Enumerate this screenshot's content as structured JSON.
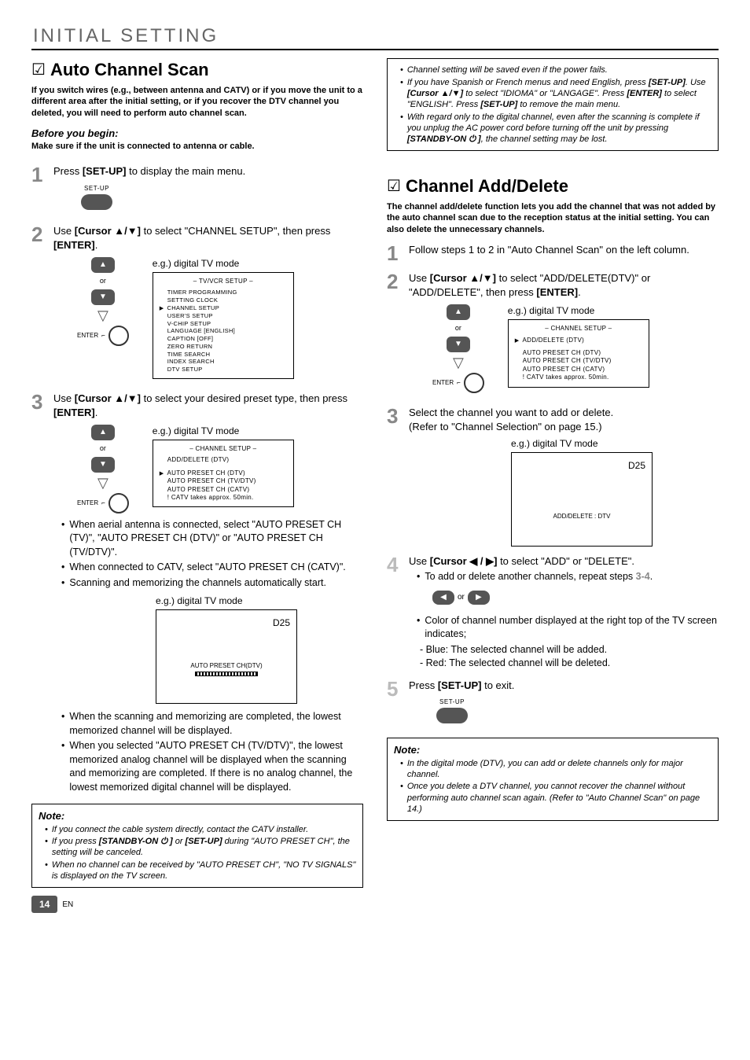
{
  "header": {
    "cap": "I",
    "rest": "NITIAL  SETTING"
  },
  "pageNum": "14",
  "pageLang": "EN",
  "left": {
    "title": "Auto Channel Scan",
    "intro": "If you switch wires (e.g., between antenna and CATV) or if you move the unit to a different area after the initial setting, or if you recover the DTV channel you deleted, you will need to perform auto channel scan.",
    "beforeBeginTitle": "Before you begin:",
    "beforeBeginSub": "Make sure if the unit is connected to antenna or cable.",
    "step1": {
      "textA": "Press ",
      "key": "[SET-UP]",
      "textB": " to display the main menu."
    },
    "setupLabel": "SET-UP",
    "step2": {
      "a": "Use ",
      "key": "[Cursor ▲/▼]",
      "b": " to select \"CHANNEL SETUP\", then press ",
      "key2": "[ENTER]",
      "c": "."
    },
    "egDigital": "e.g.) digital TV mode",
    "or": "or",
    "enterLabel": "ENTER",
    "screen1": {
      "title": "–  TV/VCR SETUP  –",
      "rows": [
        "TIMER PROGRAMMING",
        "SETTING CLOCK",
        "CHANNEL SETUP",
        "USER'S SETUP",
        "V-CHIP SETUP",
        "LANGUAGE  [ENGLISH]",
        "CAPTION  [OFF]",
        "ZERO RETURN",
        "TIME SEARCH",
        "INDEX SEARCH",
        "DTV SETUP"
      ],
      "arrowIdx": 2
    },
    "step3": {
      "a": "Use ",
      "key": "[Cursor ▲/▼]",
      "b": " to select your desired preset type, then press ",
      "key2": "[ENTER]",
      "c": "."
    },
    "screen2": {
      "title": "–   CHANNEL SETUP   –",
      "top": "ADD/DELETE (DTV)",
      "rows": [
        "AUTO PRESET CH (DTV)",
        "AUTO PRESET CH (TV/DTV)",
        "AUTO PRESET CH (CATV)",
        "! CATV takes approx. 50min."
      ],
      "arrowIdx": 0
    },
    "bullets1": [
      "When aerial antenna is connected, select \"AUTO PRESET CH (TV)\", \"AUTO PRESET CH (DTV)\" or \"AUTO PRESET CH (TV/DTV)\".",
      "When connected to CATV, select \"AUTO PRESET CH (CATV)\".",
      "Scanning and memorizing the channels automatically start."
    ],
    "tv1": {
      "ch": "D25",
      "label": "AUTO PRESET CH(DTV)"
    },
    "bullets2": [
      "When the scanning and memorizing are completed, the lowest memorized channel will be displayed.",
      "When you selected \"AUTO PRESET CH (TV/DTV)\", the lowest memorized analog channel will be displayed when the scanning and memorizing are completed. If there is no analog channel, the lowest memorized digital channel will be displayed."
    ],
    "noteHeading": "Note:",
    "notes": [
      "If you connect the cable system directly, contact the CATV installer.",
      "If you press <b>[STANDBY-ON <span class=\"power-icon\"></span> ]</b> or <b>[SET-UP]</b> during \"AUTO PRESET CH\", the setting will be canceled.",
      "When no channel can be received by \"AUTO PRESET CH\", \"NO TV SIGNALS\" is displayed on the TV screen."
    ]
  },
  "right": {
    "topNotes": [
      "Channel setting will be saved even if the power fails.",
      "If you have Spanish or French menus and need English, press <b>[SET-UP]</b>. Use <b>[Cursor ▲/▼]</b> to select \"IDIOMA\" or \"LANGAGE\". Press <b>[ENTER]</b> to select \"ENGLISH\". Press <b>[SET-UP]</b> to remove the main menu.",
      "With regard only to the digital channel, even after the scanning is complete if you unplug the AC power cord before turning off the unit by pressing <b>[STANDBY-ON <span class=\"power-icon\"></span> ]</b>, the channel setting may be lost."
    ],
    "title": "Channel Add/Delete",
    "intro": "The channel add/delete function lets you add the channel that was not added by the auto channel scan due to the reception status at the initial setting. You can also delete the unnecessary channels.",
    "step1": "Follow steps 1 to 2 in \"Auto Channel Scan\" on the left column.",
    "step2": {
      "a": "Use ",
      "key": "[Cursor ▲/▼]",
      "b": " to select \"ADD/DELETE(DTV)\" or \"ADD/DELETE\", then press ",
      "key2": "[ENTER]",
      "c": "."
    },
    "screen1": {
      "title": "–   CHANNEL SETUP   –",
      "top": "ADD/DELETE (DTV)",
      "rows": [
        "AUTO PRESET CH (DTV)",
        "AUTO PRESET CH (TV/DTV)",
        "AUTO PRESET CH (CATV)",
        "! CATV takes approx. 50min."
      ]
    },
    "step3": {
      "a": "Select the channel you want to add or delete.",
      "b": "(Refer to \"Channel Selection\" on page 15.)"
    },
    "tv": {
      "ch": "D25",
      "label": "ADD/DELETE : DTV"
    },
    "step4": {
      "a": "Use ",
      "key": "[Cursor ◀ / ▶]",
      "b": " to select \"ADD\" or \"DELETE\"."
    },
    "step4bullet": "To add or delete another channels, repeat steps ",
    "step4range": "3-4",
    "step4bulletEnd": ".",
    "colorBullets": {
      "lead": "Color of channel number displayed at the right top of the TV screen indicates;",
      "blue": "- Blue: The selected channel will be added.",
      "red": "- Red:  The selected channel will be deleted."
    },
    "step5": {
      "a": "Press ",
      "key": "[SET-UP]",
      "b": " to exit."
    },
    "noteHeading": "Note:",
    "notes": [
      "In the digital mode (DTV), you can add or delete channels only for major channel.",
      "Once you delete a DTV channel, you cannot recover the channel without performing auto channel scan again. (Refer to \"Auto Channel Scan\" on page 14.)"
    ]
  }
}
